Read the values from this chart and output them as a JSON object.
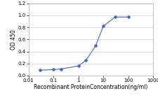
{
  "x_data": [
    0.03,
    0.1,
    0.2,
    1.0,
    2.0,
    5.0,
    10.0,
    30.0,
    100.0
  ],
  "y_data": [
    0.09,
    0.1,
    0.11,
    0.16,
    0.25,
    0.5,
    0.82,
    0.97,
    0.97
  ],
  "line_color": "#4466bb",
  "marker_color": "#4466bb",
  "marker": "D",
  "marker_size": 2.5,
  "xlim": [
    0.01,
    1000
  ],
  "ylim": [
    0,
    1.2
  ],
  "yticks": [
    0,
    0.2,
    0.4,
    0.6,
    0.8,
    1.0,
    1.2
  ],
  "xtick_labels": [
    "0.01",
    "0.1",
    "1",
    "10",
    "100",
    "1000"
  ],
  "xlabel": "Recombinant ProteinConcentration(ng/ml)",
  "ylabel": "OD 450",
  "xlabel_fontsize": 5.5,
  "ylabel_fontsize": 5.5,
  "tick_fontsize": 5,
  "background_color": "#ffffff",
  "plot_bg_color": "#ffffff",
  "grid_color": "#cccccc",
  "grid_linewidth": 0.5
}
